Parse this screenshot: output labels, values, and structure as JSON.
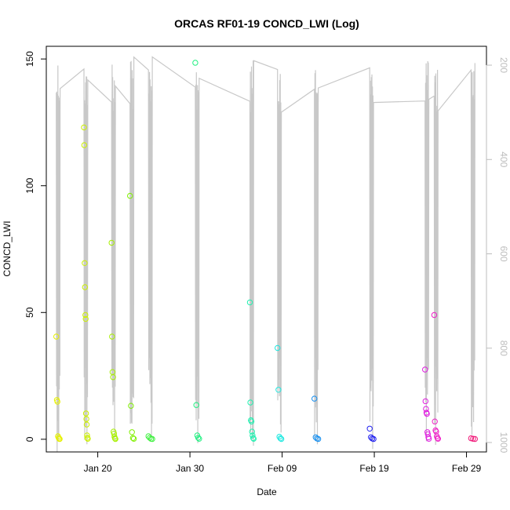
{
  "chart_data": {
    "type": "scatter",
    "title": "ORCAS RF01-19 CONCD_LWI (Log)",
    "xlabel": "Date",
    "ylabel": "CONCD_LWI",
    "xlim": [
      "2016-01-14T10:00",
      "2016-03-02T04:00"
    ],
    "ylim": [
      -5,
      155
    ],
    "x_ticks": [
      {
        "date": "2016-01-20",
        "label": "Jan 20"
      },
      {
        "date": "2016-01-30",
        "label": "Jan 30"
      },
      {
        "date": "2016-02-09",
        "label": "Feb 09"
      },
      {
        "date": "2016-02-19",
        "label": "Feb 19"
      },
      {
        "date": "2016-02-29",
        "label": "Feb 29"
      }
    ],
    "y_ticks": [
      0,
      50,
      100,
      150
    ],
    "y2_ticks": [
      200,
      400,
      600,
      800,
      1000
    ],
    "y2lim": [
      1020,
      160
    ],
    "secondary_line_color": "#c8c8c8",
    "flight_series": [
      {
        "start": "2016-01-15T12:00",
        "end": "2016-01-15T21:00",
        "color": "#e6f000",
        "points": [
          40.5,
          15.5,
          14.8,
          1.2,
          0.6,
          0.2,
          0.1
        ]
      },
      {
        "start": "2016-01-18T12:00",
        "end": "2016-01-18T22:00",
        "color": "#ccf000",
        "points": [
          123,
          116,
          69.5,
          60,
          49,
          47.5,
          10.2,
          8,
          5.8,
          1.5,
          0.6,
          0.2
        ]
      },
      {
        "start": "2016-01-21T12:00",
        "end": "2016-01-21T22:00",
        "color": "#a8f000",
        "points": [
          77.5,
          40.5,
          26.5,
          24.5,
          3,
          2.2,
          1,
          0.4,
          0.1
        ]
      },
      {
        "start": "2016-01-23T12:00",
        "end": "2016-01-23T22:00",
        "color": "#80f000",
        "points": [
          96,
          13.2,
          2.8,
          0.5,
          0.2
        ]
      },
      {
        "start": "2016-01-25T12:00",
        "end": "2016-01-25T22:00",
        "color": "#40f040",
        "points": [
          1.2,
          0.6,
          0.2,
          0.1
        ]
      },
      {
        "start": "2016-01-30T14:00",
        "end": "2016-01-31T00:00",
        "color": "#20f080",
        "points": [
          148.5,
          13.5,
          1.5,
          0.6,
          0.2
        ]
      },
      {
        "start": "2016-02-05T12:00",
        "end": "2016-02-05T22:00",
        "color": "#20f0b0",
        "points": [
          54,
          14.5,
          7.5,
          7,
          3,
          1.5,
          0.5,
          0.2
        ]
      },
      {
        "start": "2016-02-08T12:00",
        "end": "2016-02-08T22:00",
        "color": "#20e8e0",
        "points": [
          36,
          19.5,
          1,
          0.4,
          0.1
        ]
      },
      {
        "start": "2016-02-12T12:00",
        "end": "2016-02-12T22:00",
        "color": "#1890f0",
        "points": [
          16,
          0.8,
          0.3,
          0.1
        ]
      },
      {
        "start": "2016-02-18T12:00",
        "end": "2016-02-18T22:00",
        "color": "#2020f0",
        "points": [
          4.2,
          0.8,
          0.3,
          0.1
        ]
      },
      {
        "start": "2016-02-24T12:00",
        "end": "2016-02-24T22:00",
        "color": "#e020e0",
        "points": [
          27.5,
          15,
          12,
          10.5,
          10,
          2.8,
          2,
          0.8,
          0.2
        ]
      },
      {
        "start": "2016-02-25T12:00",
        "end": "2016-02-25T22:00",
        "color": "#f020c8",
        "points": [
          49,
          7,
          3.5,
          3,
          1.2,
          0.5,
          0.2
        ]
      },
      {
        "start": "2016-02-29T12:00",
        "end": "2016-02-29T22:00",
        "color": "#f01878",
        "points": [
          0.4,
          0.2,
          0.1
        ]
      }
    ],
    "secondary_flights": [
      {
        "start": "2016-01-15T12:00",
        "end": "2016-01-15T22:00"
      },
      {
        "start": "2016-01-18T12:00",
        "end": "2016-01-18T22:00"
      },
      {
        "start": "2016-01-21T12:00",
        "end": "2016-01-21T22:00"
      },
      {
        "start": "2016-01-23T12:00",
        "end": "2016-01-23T22:00"
      },
      {
        "start": "2016-01-25T12:00",
        "end": "2016-01-25T22:00"
      },
      {
        "start": "2016-01-30T14:00",
        "end": "2016-01-31T00:00"
      },
      {
        "start": "2016-02-05T12:00",
        "end": "2016-02-05T22:00"
      },
      {
        "start": "2016-02-08T12:00",
        "end": "2016-02-08T22:00"
      },
      {
        "start": "2016-02-12T12:00",
        "end": "2016-02-12T22:00"
      },
      {
        "start": "2016-02-18T12:00",
        "end": "2016-02-18T22:00"
      },
      {
        "start": "2016-02-24T12:00",
        "end": "2016-02-24T22:00"
      },
      {
        "start": "2016-02-25T12:00",
        "end": "2016-02-25T22:00"
      },
      {
        "start": "2016-02-29T12:00",
        "end": "2016-02-29T22:00"
      }
    ],
    "grid": false,
    "legend": "none"
  }
}
